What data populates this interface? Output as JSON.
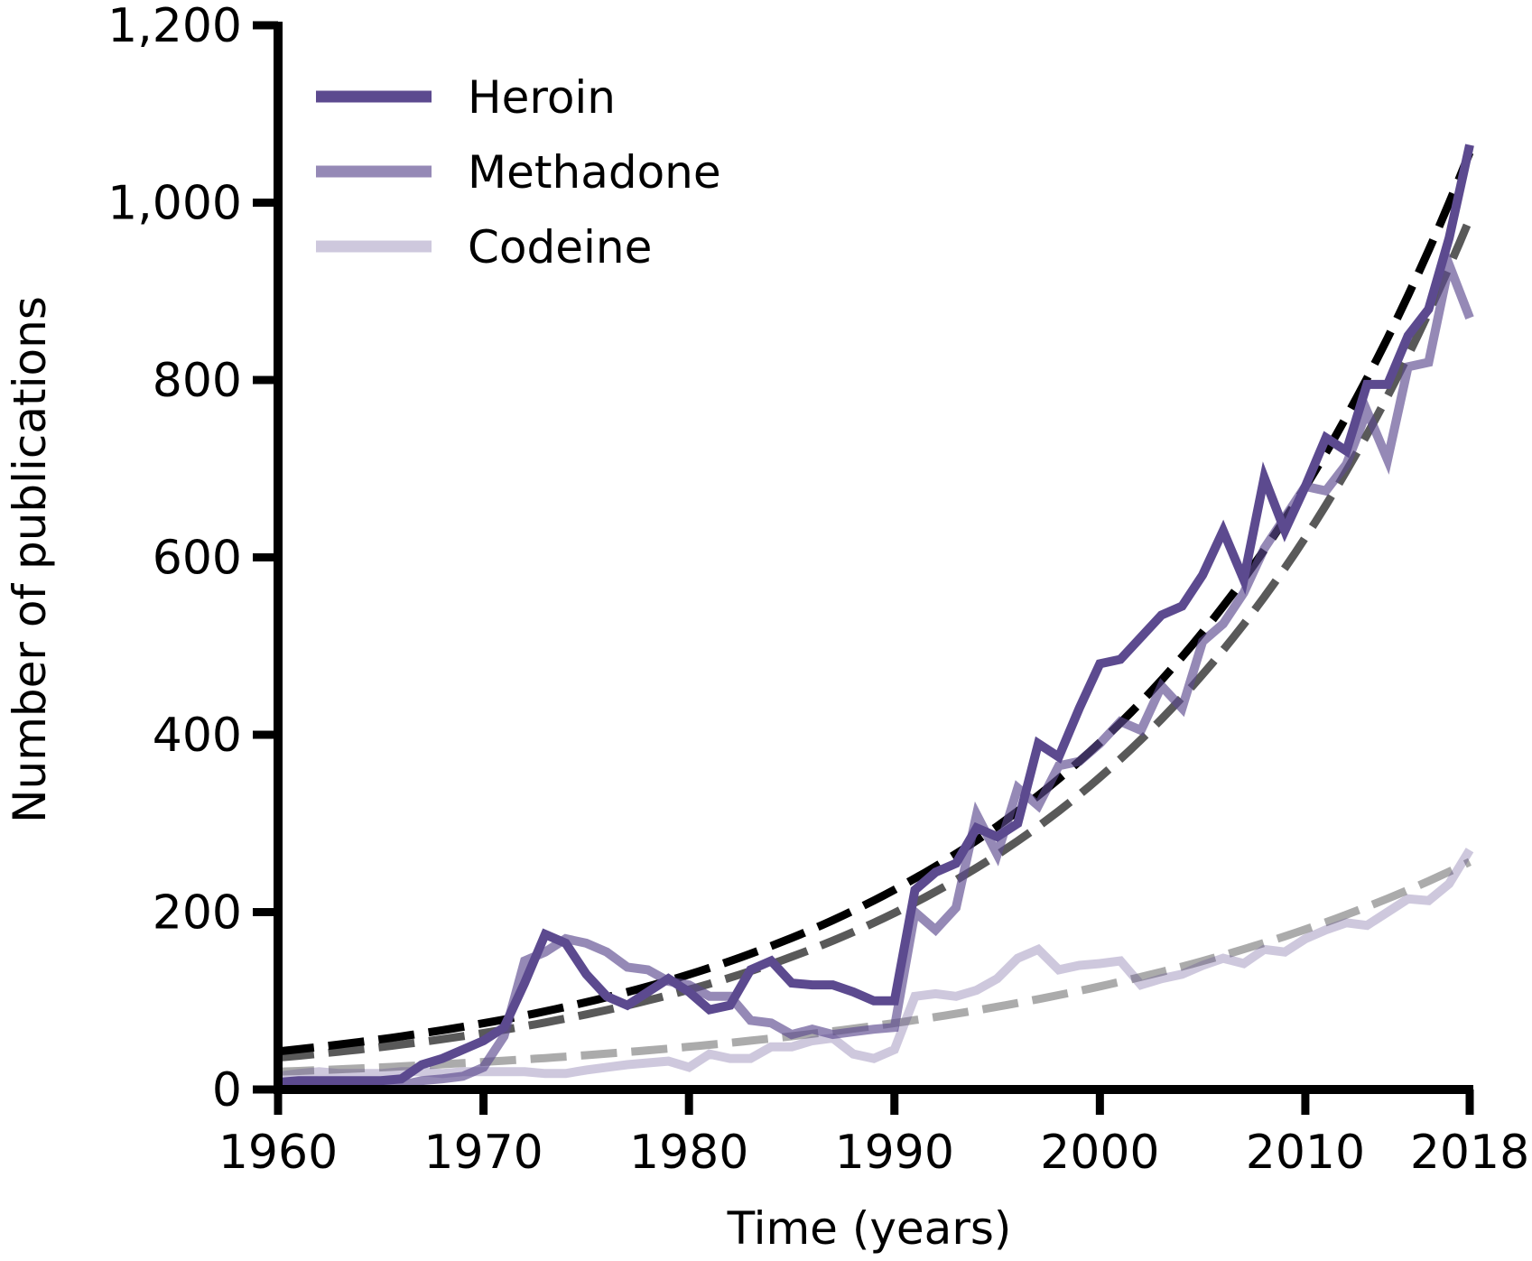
{
  "chart_data": {
    "type": "line",
    "xlabel": "Time (years)",
    "ylabel": "Number of publications",
    "xlim": [
      1960,
      2018
    ],
    "ylim": [
      0,
      1200
    ],
    "x_ticks": [
      1960,
      1970,
      1980,
      1990,
      2000,
      2010,
      2018
    ],
    "y_ticks": [
      0,
      200,
      400,
      600,
      800,
      1000,
      1200
    ],
    "x_tick_labels": [
      "1960",
      "1970",
      "1980",
      "1990",
      "2000",
      "2010",
      "2018"
    ],
    "y_tick_labels": [
      "0",
      "200",
      "400",
      "600",
      "800",
      "1,000",
      "1,200"
    ],
    "grid": false,
    "legend_position": "top-left",
    "x": [
      1960,
      1961,
      1962,
      1963,
      1964,
      1965,
      1966,
      1967,
      1968,
      1969,
      1970,
      1971,
      1972,
      1973,
      1974,
      1975,
      1976,
      1977,
      1978,
      1979,
      1980,
      1981,
      1982,
      1983,
      1984,
      1985,
      1986,
      1987,
      1988,
      1989,
      1990,
      1991,
      1992,
      1993,
      1994,
      1995,
      1996,
      1997,
      1998,
      1999,
      2000,
      2001,
      2002,
      2003,
      2004,
      2005,
      2006,
      2007,
      2008,
      2009,
      2010,
      2011,
      2012,
      2013,
      2014,
      2015,
      2016,
      2017,
      2018
    ],
    "series": [
      {
        "name": "Heroin",
        "color": "#5c4a8f",
        "opacity": 1.0,
        "values": [
          8,
          10,
          10,
          10,
          10,
          10,
          12,
          28,
          35,
          45,
          55,
          70,
          120,
          175,
          165,
          130,
          105,
          95,
          110,
          125,
          110,
          90,
          95,
          135,
          145,
          120,
          118,
          118,
          110,
          100,
          100,
          225,
          245,
          255,
          295,
          285,
          300,
          390,
          375,
          430,
          480,
          485,
          510,
          535,
          545,
          580,
          630,
          575,
          690,
          630,
          680,
          735,
          720,
          795,
          795,
          850,
          880,
          960,
          1065
        ]
      },
      {
        "name": "Methadone",
        "color": "#5c4a8f",
        "opacity": 0.65,
        "values": [
          5,
          5,
          5,
          5,
          5,
          5,
          5,
          10,
          12,
          15,
          25,
          60,
          145,
          155,
          170,
          165,
          155,
          138,
          135,
          122,
          118,
          105,
          105,
          78,
          75,
          62,
          68,
          62,
          65,
          68,
          70,
          200,
          180,
          205,
          310,
          265,
          340,
          320,
          365,
          370,
          390,
          415,
          405,
          455,
          430,
          505,
          525,
          560,
          610,
          645,
          680,
          675,
          705,
          765,
          710,
          815,
          820,
          930,
          870
        ]
      },
      {
        "name": "Codeine",
        "color": "#5c4a8f",
        "opacity": 0.3,
        "values": [
          15,
          18,
          20,
          18,
          18,
          18,
          20,
          20,
          18,
          20,
          20,
          20,
          20,
          18,
          18,
          22,
          25,
          28,
          30,
          32,
          25,
          40,
          35,
          35,
          48,
          48,
          55,
          58,
          40,
          35,
          45,
          105,
          108,
          105,
          112,
          125,
          148,
          158,
          135,
          140,
          142,
          145,
          118,
          125,
          130,
          140,
          148,
          142,
          158,
          155,
          170,
          180,
          188,
          185,
          200,
          215,
          213,
          232,
          270
        ]
      }
    ],
    "fits": [
      {
        "color": "#000000",
        "opacity": 1.0,
        "a": 43,
        "b": 0.0552
      },
      {
        "color": "#000000",
        "opacity": 0.65,
        "a": 36,
        "b": 0.057
      },
      {
        "color": "#000000",
        "opacity": 0.33,
        "a": 20,
        "b": 0.044
      }
    ]
  }
}
